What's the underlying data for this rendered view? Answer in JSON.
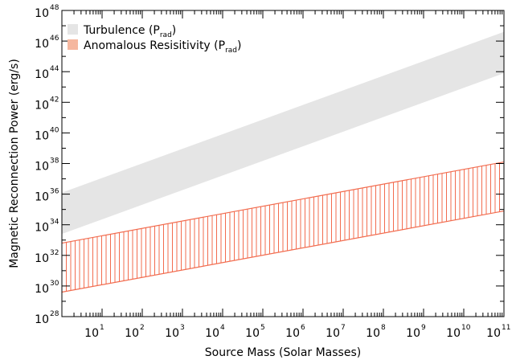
{
  "chart_data": {
    "type": "area",
    "title": "",
    "xlabel": "Source Mass (Solar Masses)",
    "ylabel": "Magnetic Reconnection Power (erg/s)",
    "xscale": "log",
    "yscale": "log",
    "xlim_exp": [
      0,
      11
    ],
    "ylim_exp": [
      28,
      48
    ],
    "x_ticks": [
      {
        "base": "10",
        "exp": "1",
        "value_exp": 1
      },
      {
        "base": "10",
        "exp": "2",
        "value_exp": 2
      },
      {
        "base": "10",
        "exp": "3",
        "value_exp": 3
      },
      {
        "base": "10",
        "exp": "4",
        "value_exp": 4
      },
      {
        "base": "10",
        "exp": "5",
        "value_exp": 5
      },
      {
        "base": "10",
        "exp": "6",
        "value_exp": 6
      },
      {
        "base": "10",
        "exp": "7",
        "value_exp": 7
      },
      {
        "base": "10",
        "exp": "8",
        "value_exp": 8
      },
      {
        "base": "10",
        "exp": "9",
        "value_exp": 9
      },
      {
        "base": "10",
        "exp": "10",
        "value_exp": 10
      },
      {
        "base": "10",
        "exp": "11",
        "value_exp": 11
      }
    ],
    "y_ticks": [
      {
        "base": "10",
        "exp": "28",
        "value_exp": 28
      },
      {
        "base": "10",
        "exp": "30",
        "value_exp": 30
      },
      {
        "base": "10",
        "exp": "32",
        "value_exp": 32
      },
      {
        "base": "10",
        "exp": "34",
        "value_exp": 34
      },
      {
        "base": "10",
        "exp": "36",
        "value_exp": 36
      },
      {
        "base": "10",
        "exp": "38",
        "value_exp": 38
      },
      {
        "base": "10",
        "exp": "40",
        "value_exp": 40
      },
      {
        "base": "10",
        "exp": "42",
        "value_exp": 42
      },
      {
        "base": "10",
        "exp": "44",
        "value_exp": 44
      },
      {
        "base": "10",
        "exp": "46",
        "value_exp": 46
      },
      {
        "base": "10",
        "exp": "48",
        "value_exp": 48
      }
    ],
    "series": [
      {
        "name": "Turbulence (P",
        "name_sub": "rad",
        "name_suffix": ")",
        "fill": "#e5e5e5",
        "pattern": "solid",
        "x_exp": [
          0,
          11
        ],
        "lower_exp": [
          33.4,
          43.9
        ],
        "upper_exp": [
          36.1,
          46.6
        ]
      },
      {
        "name": "Anomalous Resisitivity (P",
        "name_sub": "rad",
        "name_suffix": ")",
        "fill": "#f5b79f",
        "stroke": "#f26c4f",
        "pattern": "vertical-hatch",
        "x_exp": [
          0,
          11
        ],
        "lower_exp": [
          29.6,
          34.9
        ],
        "upper_exp": [
          32.8,
          38.1
        ]
      }
    ],
    "legend_position": "top-left",
    "grid": false
  }
}
